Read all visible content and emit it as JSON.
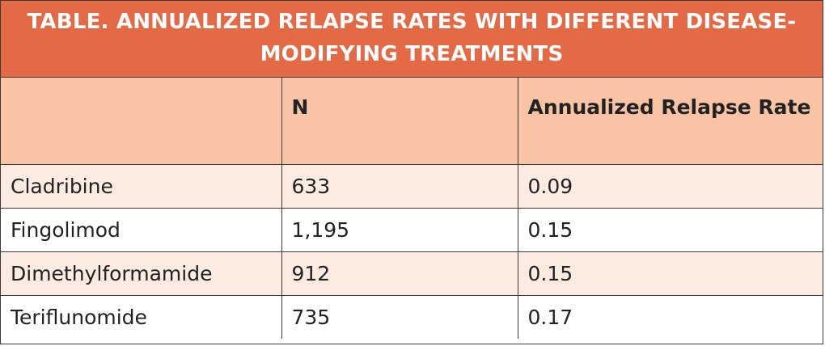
{
  "table": {
    "title": "TABLE. ANNUALIZED RELAPSE RATES WITH DIFFERENT DISEASE-MODIFYING TREATMENTS",
    "headers": [
      "",
      "N",
      "Annualized Relapse Rate"
    ],
    "rows": [
      [
        "Cladribine",
        "633",
        "0.09"
      ],
      [
        "Fingolimod",
        "1,195",
        "0.15"
      ],
      [
        "Dimethylformamide",
        "912",
        "0.15"
      ],
      [
        "Teriflunomide",
        "735",
        "0.17"
      ]
    ]
  },
  "colors": {
    "title_bg": "#e36a45",
    "header_bg": "#f8c4a5",
    "shaded_row_bg": "#fcebe1",
    "border": "#3a3a3a"
  }
}
